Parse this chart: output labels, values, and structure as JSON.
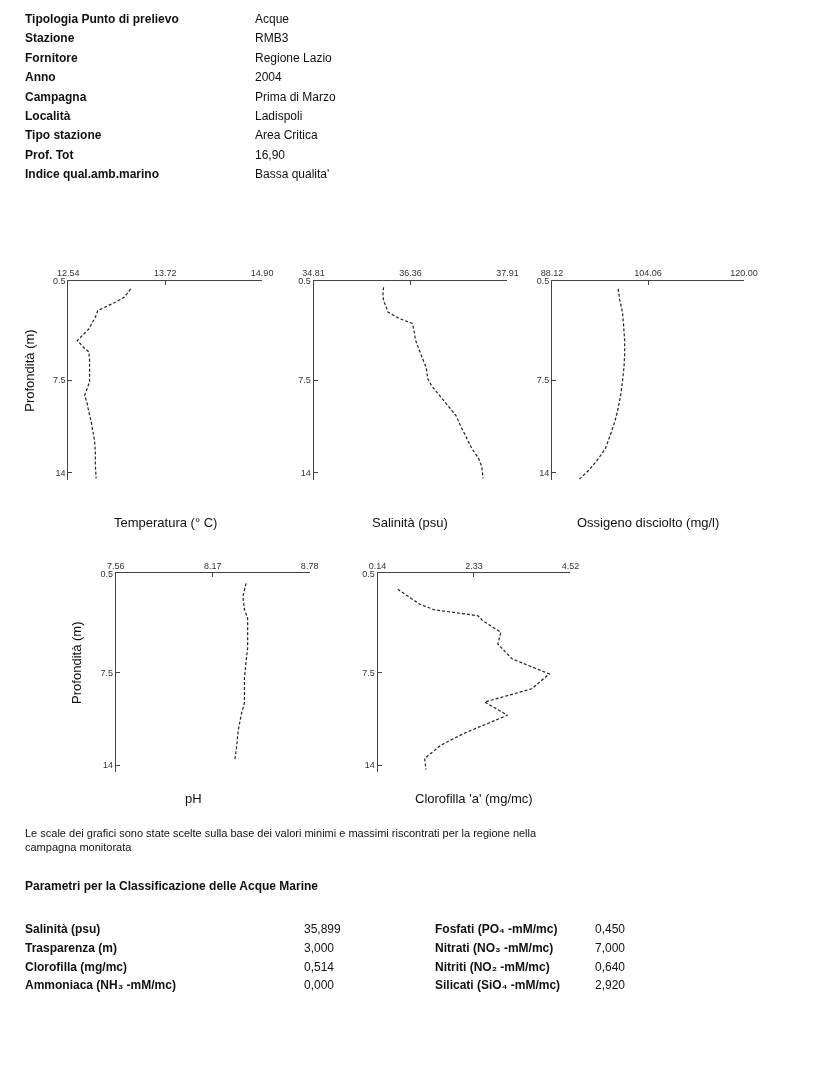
{
  "chart_data": [
    {
      "type": "other",
      "annotations": [
        "Tipologia Punto di prelievo",
        "Acque",
        "Stazione",
        "RMB3",
        "Fornitore",
        "Regione Lazio",
        "Anno",
        "2004",
        "Campagna",
        "Prima di Marzo",
        "Località",
        "Ladispoli",
        "Tipo stazione",
        "Area Critica",
        "Prof. Tot",
        "16,90",
        "Indice qual.amb.marino",
        "Bassa qualita'"
      ]
    },
    {
      "type": "line",
      "xlabel": "Temperatura (° C)",
      "ylabel": "Profondità (m)",
      "xlim": [
        12.54,
        14.9
      ],
      "xticks": [
        12.54,
        13.72,
        {
          "value": 14.9,
          "label": "14.90"
        }
      ],
      "ylim": [
        14.5,
        0.5
      ],
      "yticks": [
        0.5,
        7.5,
        14
      ],
      "line_style": "dashed",
      "series": [
        {
          "color": "#222222",
          "x": [
            13.3,
            13.22,
            13.12,
            12.9,
            12.87,
            12.79,
            12.67,
            12.65,
            12.73,
            12.79,
            12.8,
            12.8,
            12.8,
            12.77,
            12.74,
            12.77,
            12.79,
            12.82,
            12.84,
            12.86,
            12.87,
            12.87,
            12.88
          ],
          "values": [
            1.08,
            1.67,
            2.0,
            2.6,
            3.07,
            3.9,
            4.6,
            4.7,
            5.2,
            5.5,
            6.0,
            6.7,
            7.6,
            8.1,
            8.55,
            9.1,
            9.7,
            10.4,
            11.1,
            11.7,
            12.5,
            13.45,
            14.4
          ]
        }
      ]
    },
    {
      "type": "line",
      "xlabel": "Salinità (psu)",
      "xlim": [
        34.81,
        37.91
      ],
      "xticks": [
        34.81,
        36.36,
        37.91
      ],
      "ylim": [
        14.5,
        0.5
      ],
      "yticks": [
        0.5,
        7.5,
        14
      ],
      "line_style": "dashed",
      "series": [
        {
          "color": "#222222",
          "x": [
            35.93,
            35.92,
            35.93,
            36.0,
            36.18,
            36.39,
            36.42,
            36.44,
            36.52,
            36.61,
            36.64,
            36.7,
            36.83,
            36.96,
            37.09,
            37.16,
            37.24,
            37.34,
            37.45,
            37.5,
            37.52
          ],
          "values": [
            0.96,
            1.43,
            1.89,
            2.7,
            3.16,
            3.5,
            4.1,
            4.67,
            5.6,
            6.6,
            7.44,
            7.9,
            8.6,
            9.3,
            10.0,
            10.7,
            11.4,
            12.3,
            13.0,
            13.6,
            14.4
          ]
        }
      ]
    },
    {
      "type": "line",
      "xlabel": "Ossigeno disciolto (mg/l)",
      "xlim": [
        88.12,
        120.0
      ],
      "xticks": [
        88.12,
        104.06,
        {
          "value": 120,
          "label": "120.00"
        }
      ],
      "ylim": [
        14.5,
        0.5
      ],
      "yticks": [
        0.5,
        7.5,
        14
      ],
      "line_style": "dashed",
      "series": [
        {
          "color": "#222222",
          "x": [
            99.1,
            99.37,
            99.8,
            100.01,
            100.18,
            100.18,
            100.07,
            99.8,
            99.53,
            99.1,
            98.57,
            97.76,
            96.96,
            95.62,
            94.28,
            92.67
          ],
          "values": [
            1.07,
            1.88,
            2.68,
            3.71,
            4.75,
            5.66,
            6.58,
            7.61,
            8.53,
            9.45,
            10.37,
            11.4,
            12.32,
            13.12,
            13.81,
            14.45
          ]
        }
      ]
    },
    {
      "type": "line",
      "xlabel": "pH",
      "ylabel": "Profondità (m)",
      "xlim": [
        7.56,
        8.78
      ],
      "xticks": [
        7.56,
        8.17,
        8.78
      ],
      "ylim": [
        14.5,
        0.5
      ],
      "yticks": [
        0.5,
        7.5,
        14
      ],
      "line_style": "dashed",
      "series": [
        {
          "color": "#222222",
          "x": [
            8.38,
            8.36,
            8.37,
            8.39,
            8.39,
            8.38,
            8.37,
            8.37,
            8.35,
            8.33,
            8.32,
            8.31
          ],
          "values": [
            1.2,
            2.13,
            3.06,
            3.65,
            5.75,
            6.68,
            7.85,
            9.6,
            10.41,
            11.58,
            12.75,
            13.56
          ]
        }
      ]
    },
    {
      "type": "line",
      "xlabel": "Clorofilla 'a' (mg/mc)",
      "xlim": [
        0.14,
        4.52
      ],
      "xticks": [
        0.14,
        2.33,
        4.52
      ],
      "ylim": [
        14.5,
        0.5
      ],
      "yticks": [
        0.5,
        7.5,
        14
      ],
      "line_style": "dashed",
      "series": [
        {
          "color": "#222222",
          "x": [
            0.6,
            1.1,
            1.43,
            2.42,
            2.53,
            2.94,
            2.87,
            3.2,
            4.04,
            3.64,
            2.57,
            3.09,
            2.9,
            2.09,
            1.58,
            1.21,
            1.24
          ],
          "values": [
            1.62,
            2.67,
            3.06,
            3.48,
            3.83,
            4.65,
            5.47,
            6.52,
            7.57,
            8.62,
            9.55,
            10.48,
            10.72,
            11.77,
            12.58,
            13.52,
            14.3
          ]
        }
      ]
    },
    {
      "type": "other",
      "annotations": [
        "Le scale dei grafici sono state scelte sulla base dei valori minimi e massimi riscontrati per la regione nella campagna monitorata",
        "Parametri per la Classificazione delle Acque Marine",
        "Salinità (psu)",
        "35,899",
        "Fosfati (PO₄ -mM/mc)",
        "0,450",
        "Trasparenza (m)",
        "3,000",
        "Nitrati (NO₃ -mM/mc)",
        "7,000",
        "Clorofilla (mg/mc)",
        "0,514",
        "Nitriti (NO₂ -mM/mc)",
        "0,640",
        "Ammoniaca (NH₃ -mM/mc)",
        "0,000",
        "Silicati (SiO₄ -mM/mc)",
        "2,920"
      ]
    }
  ]
}
